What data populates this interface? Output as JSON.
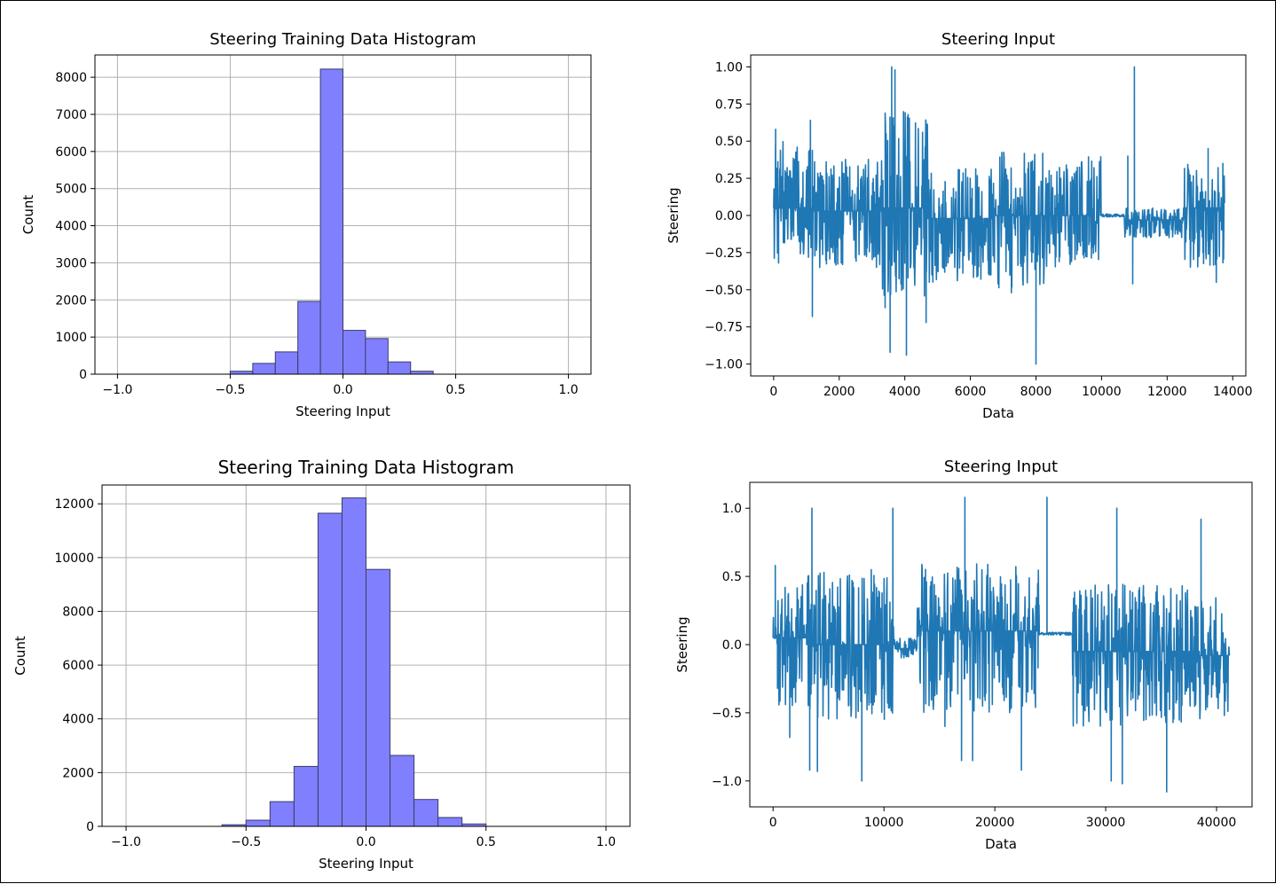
{
  "chart_data": [
    {
      "id": "hist1",
      "type": "bar",
      "title": "Steering Training Data Histogram",
      "xlabel": "Steering Input",
      "ylabel": "Count",
      "xlim": [
        -1.1,
        1.1
      ],
      "ylim": [
        0,
        8600
      ],
      "xticks": [
        -1.0,
        -0.5,
        0.0,
        0.5,
        1.0
      ],
      "xtick_labels": [
        "−1.0",
        "−0.5",
        "0.0",
        "0.5",
        "1.0"
      ],
      "yticks": [
        0,
        1000,
        2000,
        3000,
        4000,
        5000,
        6000,
        7000,
        8000
      ],
      "ytick_labels": [
        "0",
        "1000",
        "2000",
        "3000",
        "4000",
        "5000",
        "6000",
        "7000",
        "8000"
      ],
      "grid": true,
      "bar_color": "#8080ff",
      "edge_color": "#3a3a6a",
      "bins": [
        {
          "x0": -0.5,
          "x1": -0.4,
          "count": 80
        },
        {
          "x0": -0.4,
          "x1": -0.3,
          "count": 290
        },
        {
          "x0": -0.3,
          "x1": -0.2,
          "count": 600
        },
        {
          "x0": -0.2,
          "x1": -0.1,
          "count": 1960
        },
        {
          "x0": -0.1,
          "x1": 0.0,
          "count": 8220
        },
        {
          "x0": 0.0,
          "x1": 0.1,
          "count": 1180
        },
        {
          "x0": 0.1,
          "x1": 0.2,
          "count": 960
        },
        {
          "x0": 0.2,
          "x1": 0.3,
          "count": 330
        },
        {
          "x0": 0.3,
          "x1": 0.4,
          "count": 80
        }
      ]
    },
    {
      "id": "line1",
      "type": "line",
      "title": "Steering Input",
      "xlabel": "Data",
      "ylabel": "Steering",
      "xlim": [
        -700,
        14400
      ],
      "ylim": [
        -1.08,
        1.08
      ],
      "xticks": [
        0,
        2000,
        4000,
        6000,
        8000,
        10000,
        12000,
        14000
      ],
      "xtick_labels": [
        "0",
        "2000",
        "4000",
        "6000",
        "8000",
        "10000",
        "12000",
        "14000"
      ],
      "yticks": [
        1.0,
        0.75,
        0.5,
        0.25,
        0.0,
        -0.25,
        -0.5,
        -0.75,
        -1.0
      ],
      "ytick_labels": [
        "1.00",
        "0.75",
        "0.50",
        "0.25",
        "0.00",
        "−0.25",
        "−0.50",
        "−0.75",
        "−1.00"
      ],
      "grid": false,
      "line_color": "#1f77b4",
      "x_max": 13760,
      "segments": [
        {
          "x0": 0,
          "x1": 1200,
          "lo": -0.33,
          "hi": 0.5,
          "c": 0.05
        },
        {
          "x0": 1200,
          "x1": 3300,
          "lo": -0.35,
          "hi": 0.38,
          "c": 0.03
        },
        {
          "x0": 3300,
          "x1": 4700,
          "lo": -0.55,
          "hi": 0.7,
          "c": 0.05
        },
        {
          "x0": 4700,
          "x1": 6700,
          "lo": -0.45,
          "hi": 0.32,
          "c": -0.02
        },
        {
          "x0": 6700,
          "x1": 8400,
          "lo": -0.5,
          "hi": 0.45,
          "c": 0.0
        },
        {
          "x0": 8400,
          "x1": 10000,
          "lo": -0.35,
          "hi": 0.4,
          "c": 0.0
        },
        {
          "x0": 10000,
          "x1": 10700,
          "lo": 0.0,
          "hi": 0.02,
          "c": 0.0
        },
        {
          "x0": 10700,
          "x1": 12500,
          "lo": -0.15,
          "hi": 0.05,
          "c": -0.03
        },
        {
          "x0": 12500,
          "x1": 13760,
          "lo": -0.35,
          "hi": 0.35,
          "c": 0.05
        }
      ],
      "spikes": [
        {
          "x": 60,
          "y": 0.58
        },
        {
          "x": 150,
          "y": -0.32
        },
        {
          "x": 1120,
          "y": 0.64
        },
        {
          "x": 1180,
          "y": -0.68
        },
        {
          "x": 3400,
          "y": -0.62
        },
        {
          "x": 3550,
          "y": -0.92
        },
        {
          "x": 3600,
          "y": 1.0
        },
        {
          "x": 3700,
          "y": 0.98
        },
        {
          "x": 4050,
          "y": -0.94
        },
        {
          "x": 4100,
          "y": 0.68
        },
        {
          "x": 4650,
          "y": -0.72
        },
        {
          "x": 7250,
          "y": -0.52
        },
        {
          "x": 8000,
          "y": -1.0
        },
        {
          "x": 10800,
          "y": 0.4
        },
        {
          "x": 10950,
          "y": -0.46
        },
        {
          "x": 11000,
          "y": 1.0
        },
        {
          "x": 13250,
          "y": 0.45
        },
        {
          "x": 13500,
          "y": -0.45
        },
        {
          "x": 13700,
          "y": 0.35
        }
      ],
      "seed": 7
    },
    {
      "id": "hist2",
      "type": "bar",
      "title": "Steering Training Data Histogram",
      "xlabel": "Steering Input",
      "ylabel": "Count",
      "xlim": [
        -1.1,
        1.1
      ],
      "ylim": [
        0,
        12700
      ],
      "xticks": [
        -1.0,
        -0.5,
        0.0,
        0.5,
        1.0
      ],
      "xtick_labels": [
        "−1.0",
        "−0.5",
        "0.0",
        "0.5",
        "1.0"
      ],
      "yticks": [
        0,
        2000,
        4000,
        6000,
        8000,
        10000,
        12000
      ],
      "ytick_labels": [
        "0",
        "2000",
        "4000",
        "6000",
        "8000",
        "10000",
        "12000"
      ],
      "grid": true,
      "bar_color": "#8080ff",
      "edge_color": "#3a3a6a",
      "bins": [
        {
          "x0": -0.6,
          "x1": -0.5,
          "count": 60
        },
        {
          "x0": -0.5,
          "x1": -0.4,
          "count": 230
        },
        {
          "x0": -0.4,
          "x1": -0.3,
          "count": 920
        },
        {
          "x0": -0.3,
          "x1": -0.2,
          "count": 2230
        },
        {
          "x0": -0.2,
          "x1": -0.1,
          "count": 11650
        },
        {
          "x0": -0.1,
          "x1": 0.0,
          "count": 12220
        },
        {
          "x0": 0.0,
          "x1": 0.1,
          "count": 9560
        },
        {
          "x0": 0.1,
          "x1": 0.2,
          "count": 2640
        },
        {
          "x0": 0.2,
          "x1": 0.3,
          "count": 1000
        },
        {
          "x0": 0.3,
          "x1": 0.4,
          "count": 330
        },
        {
          "x0": 0.4,
          "x1": 0.5,
          "count": 90
        }
      ]
    },
    {
      "id": "line2",
      "type": "line",
      "title": "Steering Input",
      "xlabel": "Data",
      "ylabel": "Steering",
      "xlim": [
        -2100,
        43200
      ],
      "ylim": [
        -1.19,
        1.19
      ],
      "xticks": [
        0,
        10000,
        20000,
        30000,
        40000
      ],
      "xtick_labels": [
        "0",
        "10000",
        "20000",
        "30000",
        "40000"
      ],
      "yticks": [
        1.0,
        0.5,
        0.0,
        -0.5,
        -1.0
      ],
      "ytick_labels": [
        "1.0",
        "0.5",
        "0.0",
        "−0.5",
        "−1.0"
      ],
      "grid": false,
      "line_color": "#1f77b4",
      "x_max": 41200,
      "segments": [
        {
          "x0": 0,
          "x1": 3000,
          "lo": -0.45,
          "hi": 0.45,
          "c": 0.05
        },
        {
          "x0": 3000,
          "x1": 11000,
          "lo": -0.55,
          "hi": 0.55,
          "c": 0.0
        },
        {
          "x0": 11000,
          "x1": 13000,
          "lo": -0.1,
          "hi": 0.05,
          "c": -0.03
        },
        {
          "x0": 13000,
          "x1": 24000,
          "lo": -0.5,
          "hi": 0.6,
          "c": 0.1
        },
        {
          "x0": 24000,
          "x1": 27000,
          "lo": 0.07,
          "hi": 0.09,
          "c": 0.08
        },
        {
          "x0": 27000,
          "x1": 38500,
          "lo": -0.6,
          "hi": 0.45,
          "c": -0.05
        },
        {
          "x0": 38500,
          "x1": 41200,
          "lo": -0.5,
          "hi": 0.35,
          "c": -0.08
        }
      ],
      "spikes": [
        {
          "x": 200,
          "y": 0.58
        },
        {
          "x": 400,
          "y": -0.32
        },
        {
          "x": 1500,
          "y": -0.68
        },
        {
          "x": 3300,
          "y": -0.92
        },
        {
          "x": 3500,
          "y": 1.0
        },
        {
          "x": 4000,
          "y": -0.93
        },
        {
          "x": 8000,
          "y": -1.0
        },
        {
          "x": 10800,
          "y": 1.0
        },
        {
          "x": 15500,
          "y": -0.6
        },
        {
          "x": 17000,
          "y": -0.85
        },
        {
          "x": 17300,
          "y": 1.08
        },
        {
          "x": 18000,
          "y": -0.85
        },
        {
          "x": 22400,
          "y": -0.92
        },
        {
          "x": 24700,
          "y": 1.08
        },
        {
          "x": 30500,
          "y": -1.0
        },
        {
          "x": 31000,
          "y": 1.0
        },
        {
          "x": 31500,
          "y": -1.02
        },
        {
          "x": 35500,
          "y": -1.08
        },
        {
          "x": 38600,
          "y": 0.92
        },
        {
          "x": 40700,
          "y": -0.52
        }
      ],
      "seed": 13
    }
  ]
}
